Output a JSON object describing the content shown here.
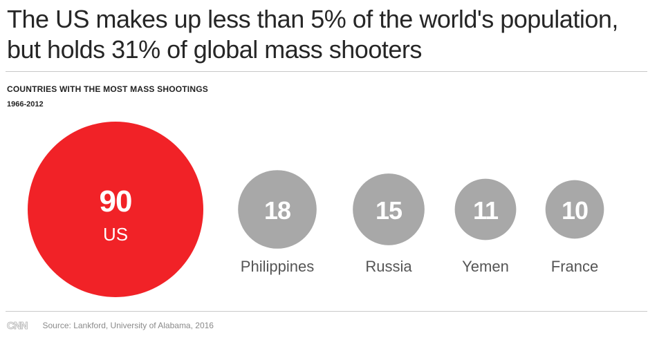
{
  "headline": {
    "line1": "The US makes up less than 5% of the world's population,",
    "line2": "but holds 31% of global mass shooters"
  },
  "subhead": "COUNTRIES WITH THE MOST MASS SHOOTINGS",
  "period": "1966-2012",
  "footer": {
    "logo": "CNN",
    "source": "Source: Lankford, University of Alabama, 2016"
  },
  "colors": {
    "highlight": "#f12227",
    "other": "#a8a8a8",
    "value_text": "#ffffff",
    "label_text": "#555555"
  },
  "chart_data": {
    "type": "bubble",
    "title": "COUNTRIES WITH THE MOST MASS SHOOTINGS",
    "subtitle": "1966-2012",
    "categories": [
      "US",
      "Philippines",
      "Russia",
      "Yemen",
      "France"
    ],
    "values": [
      90,
      18,
      15,
      11,
      10
    ],
    "highlight": "US",
    "label_position_highlight": "inside",
    "label_position_others": "below"
  }
}
